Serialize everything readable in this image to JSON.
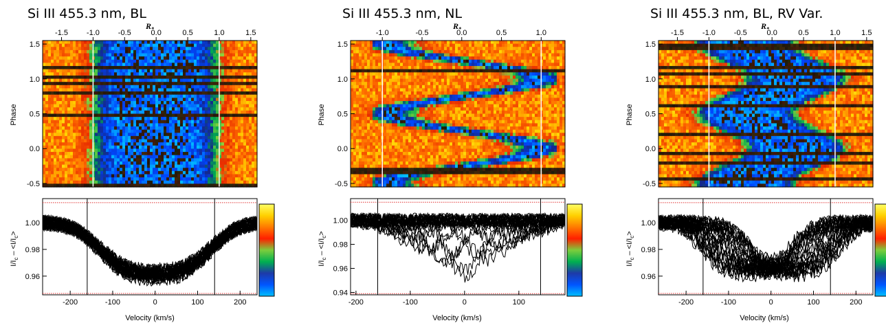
{
  "colors": {
    "colorbar": [
      "#00bfff",
      "#0055ff",
      "#1e3aa8",
      "#00b050",
      "#7ccd3c",
      "#ff2000",
      "#ff7a00",
      "#ffd000",
      "#ffff66"
    ],
    "hline": "#e03030",
    "vline_top": "#ffffff",
    "vline_bottom": "#000000"
  },
  "chart_data": [
    {
      "type": "heatmap",
      "title": "Si III 455.3 nm, BL",
      "top_xlabel": "R",
      "top_xlabel_sub": "*",
      "top_xticks": [
        "-1.5",
        "-1.0",
        "-0.5",
        "0.0",
        "0.5",
        "1.0",
        "1.5"
      ],
      "top_xtick_values": [
        -1.5,
        -1.0,
        -0.5,
        0.0,
        0.5,
        1.0,
        1.5
      ],
      "top_xlim": [
        -1.8,
        1.6
      ],
      "ylabel_top": "Phase",
      "yticks_top": [
        "-0.5",
        "0.0",
        "0.5",
        "1.0",
        "1.5"
      ],
      "ytick_values_top": [
        -0.5,
        0.0,
        0.5,
        1.0,
        1.5
      ],
      "ylim_top": [
        -0.55,
        1.55
      ],
      "vlines_top_Rstar": [
        -1.0,
        1.0
      ],
      "line_profile": {
        "type": "line",
        "xlabel": "Velocity (km/s)",
        "ylabel": "I/I_c − <I/I_c>",
        "ylabel_parts": [
          "I/I",
          "c",
          " – <I/I",
          "c",
          ">"
        ],
        "xticks": [
          "-200",
          "-100",
          "0",
          "100",
          "200"
        ],
        "xtick_values": [
          -200,
          -100,
          0,
          100,
          200
        ],
        "xlim": [
          -265,
          240
        ],
        "yticks": [
          "0.96",
          "0.98",
          "1.00"
        ],
        "ytick_values": [
          0.96,
          0.98,
          1.0
        ],
        "ylim": [
          0.946,
          1.018
        ],
        "hlines": [
          1.015,
          0.947
        ],
        "vlines_velocity": [
          -160,
          140
        ],
        "profile_depth": 0.04,
        "profile_center_velocity": 0,
        "profile_half_width_velocity": 150,
        "rv_variable": false
      }
    },
    {
      "type": "heatmap",
      "title": "Si III 455.3 nm, NL",
      "top_xlabel": "R",
      "top_xlabel_sub": "*",
      "top_xticks": [
        "-1.0",
        "-0.5",
        "0.0",
        "0.5",
        "1.0"
      ],
      "top_xtick_values": [
        -1.0,
        -0.5,
        0.0,
        0.5,
        1.0
      ],
      "top_xlim": [
        -1.4,
        1.3
      ],
      "ylabel_top": "Phase",
      "yticks_top": [
        "-0.5",
        "0.0",
        "0.5",
        "1.0",
        "1.5"
      ],
      "ytick_values_top": [
        -0.5,
        0.0,
        0.5,
        1.0,
        1.5
      ],
      "ylim_top": [
        -0.55,
        1.55
      ],
      "vlines_top_Rstar": [
        -1.0,
        1.0
      ],
      "line_profile": {
        "type": "line",
        "xlabel": "Velocity (km/s)",
        "ylabel": "I/I_c − <I/I_c>",
        "ylabel_parts": [
          "I/I",
          "c",
          " – <I/I",
          "c",
          ">"
        ],
        "xticks": [
          "-200",
          "-100",
          "0",
          "100"
        ],
        "xtick_values": [
          -200,
          -100,
          0,
          100
        ],
        "xlim": [
          -210,
          185
        ],
        "yticks": [
          "0.94",
          "0.96",
          "0.98",
          "1.00"
        ],
        "ytick_values": [
          0.94,
          0.96,
          0.98,
          1.0
        ],
        "ylim": [
          0.938,
          1.018
        ],
        "hlines": [
          1.015,
          0.939
        ],
        "vlines_velocity": [
          -160,
          140
        ],
        "profile_depth": 0.045,
        "profile_center_velocity": 0,
        "profile_half_width_velocity": 45,
        "rv_variable": true
      }
    },
    {
      "type": "heatmap",
      "title": "Si III 455.3 nm, BL, RV Var.",
      "top_xlabel": "R",
      "top_xlabel_sub": "*",
      "top_xticks": [
        "-1.5",
        "-1.0",
        "-0.5",
        "0.0",
        "0.5",
        "1.0",
        "1.5"
      ],
      "top_xtick_values": [
        -1.5,
        -1.0,
        -0.5,
        0.0,
        0.5,
        1.0,
        1.5
      ],
      "top_xlim": [
        -1.8,
        1.6
      ],
      "ylabel_top": "Phase",
      "yticks_top": [
        "-0.5",
        "0.0",
        "0.5",
        "1.0",
        "1.5"
      ],
      "ytick_values_top": [
        -0.5,
        0.0,
        0.5,
        1.0,
        1.5
      ],
      "ylim_top": [
        -0.55,
        1.55
      ],
      "vlines_top_Rstar": [
        -1.0,
        1.0
      ],
      "line_profile": {
        "type": "line",
        "xlabel": "Velocity (km/s)",
        "ylabel": "I/I_c − <I/I_c>",
        "ylabel_parts": [
          "I/I",
          "c",
          " – <I/I",
          "c",
          ">"
        ],
        "xticks": [
          "-200",
          "-100",
          "0",
          "100",
          "200"
        ],
        "xtick_values": [
          -200,
          -100,
          0,
          100,
          200
        ],
        "xlim": [
          -265,
          240
        ],
        "yticks": [
          "0.96",
          "0.98",
          "1.00"
        ],
        "ytick_values": [
          0.96,
          0.98,
          1.0
        ],
        "ylim": [
          0.946,
          1.018
        ],
        "hlines": [
          1.015,
          0.947
        ],
        "vlines_velocity": [
          -160,
          140
        ],
        "profile_depth": 0.037,
        "profile_center_velocity": 0,
        "profile_half_width_velocity": 120,
        "rv_variable": true
      }
    }
  ]
}
